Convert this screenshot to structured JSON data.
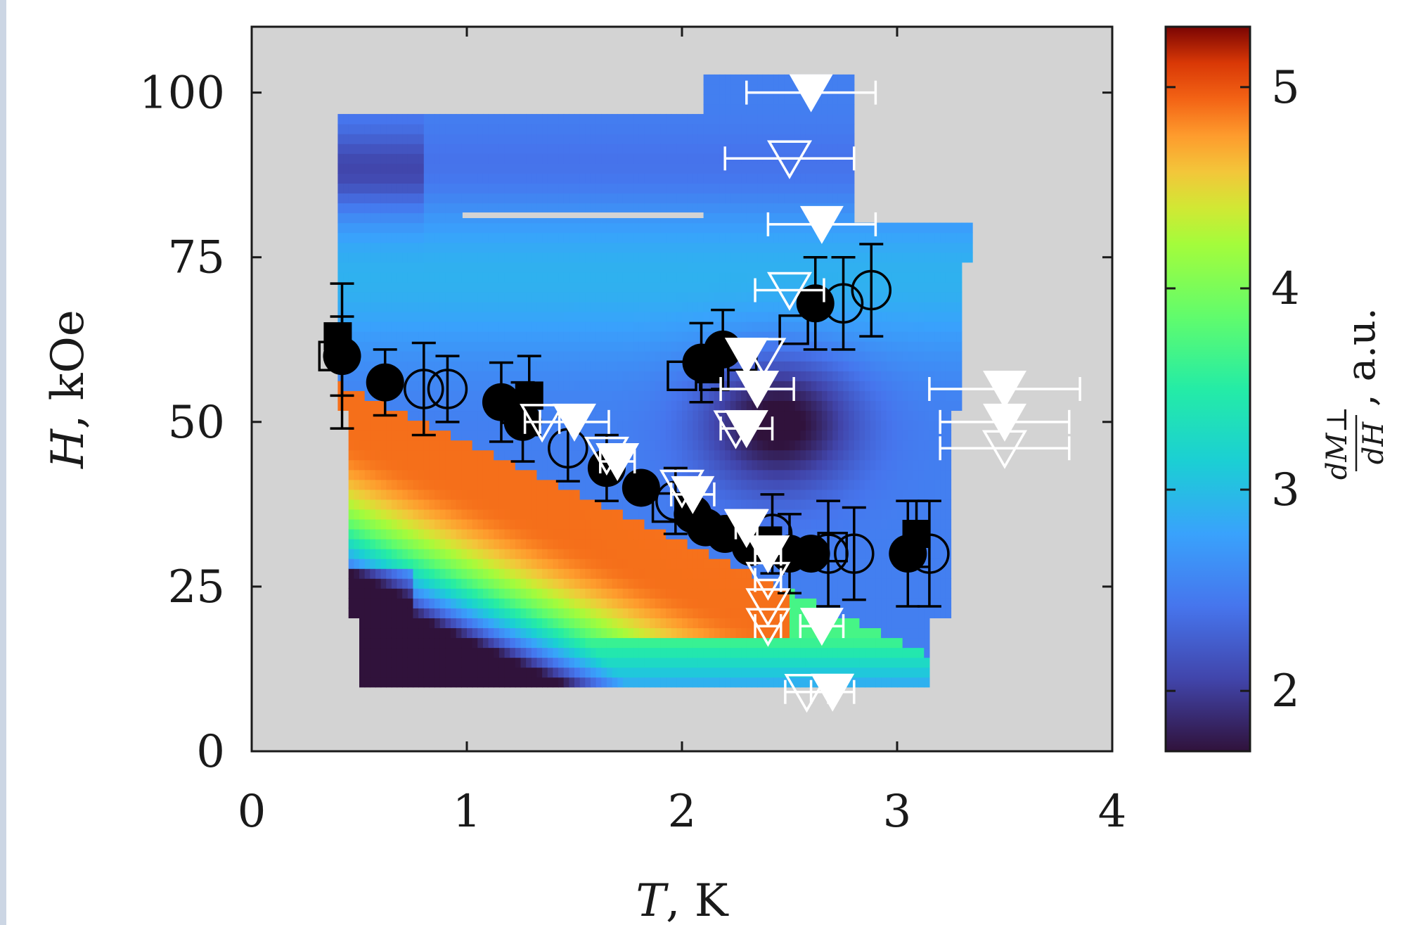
{
  "chart_data": {
    "type": "heatmap",
    "xlabel": {
      "symbol": "T",
      "unit": ", K"
    },
    "ylabel": {
      "symbol": "H",
      "unit": ", kOe"
    },
    "xlim": [
      0,
      4
    ],
    "ylim": [
      0,
      110
    ],
    "xticks": [
      "0",
      "1",
      "2",
      "3",
      "4"
    ],
    "yticks": [
      "0",
      "25",
      "50",
      "75",
      "100"
    ],
    "colorbar": {
      "label_numerator": "dM⊥",
      "label_denominator": "dH",
      "label_unit": ", a.u.",
      "range": [
        1.7,
        5.3
      ],
      "ticks": [
        "2",
        "3",
        "4",
        "5"
      ]
    },
    "colors": {
      "background": "#d3d3d3",
      "axes": "#1a1a1a",
      "markers_black": "#000000",
      "markers_white": "#ffffff"
    },
    "series": [
      {
        "marker": "filled-circle",
        "color": "black",
        "points": [
          [
            0.42,
            60
          ],
          [
            0.62,
            56
          ],
          [
            1.16,
            53
          ],
          [
            1.26,
            50
          ],
          [
            1.65,
            43
          ],
          [
            1.81,
            40
          ],
          [
            2.05,
            36
          ],
          [
            2.11,
            34
          ],
          [
            2.2,
            33
          ],
          [
            2.32,
            31
          ],
          [
            2.5,
            30
          ],
          [
            2.6,
            30
          ],
          [
            2.09,
            59
          ],
          [
            2.19,
            61
          ],
          [
            2.62,
            68
          ],
          [
            3.05,
            30
          ]
        ]
      },
      {
        "marker": "open-circle",
        "color": "black",
        "points": [
          [
            0.8,
            55
          ],
          [
            0.91,
            55
          ],
          [
            1.47,
            46
          ],
          [
            1.97,
            38
          ],
          [
            2.42,
            33
          ],
          [
            2.68,
            30
          ],
          [
            2.8,
            30
          ],
          [
            2.75,
            68
          ],
          [
            2.88,
            70
          ],
          [
            3.15,
            30
          ]
        ]
      },
      {
        "marker": "filled-square",
        "color": "black",
        "points": [
          [
            0.4,
            63
          ],
          [
            1.29,
            54
          ],
          [
            2.03,
            37
          ],
          [
            2.28,
            34
          ],
          [
            2.4,
            32
          ],
          [
            2.13,
            58
          ],
          [
            3.09,
            33
          ]
        ]
      },
      {
        "marker": "open-square",
        "color": "black",
        "points": [
          [
            0.38,
            60
          ],
          [
            1.23,
            52
          ],
          [
            1.93,
            37
          ],
          [
            2.0,
            57
          ],
          [
            2.15,
            57
          ],
          [
            2.28,
            60
          ],
          [
            2.52,
            64
          ],
          [
            2.7,
            31
          ]
        ]
      },
      {
        "marker": "filled-triangle-down",
        "color": "white",
        "points": [
          [
            2.6,
            100
          ],
          [
            2.65,
            80
          ],
          [
            1.5,
            50
          ],
          [
            1.7,
            44
          ],
          [
            2.05,
            39
          ],
          [
            2.3,
            34
          ],
          [
            2.4,
            30
          ],
          [
            2.35,
            55
          ],
          [
            2.3,
            49
          ],
          [
            3.5,
            55
          ],
          [
            3.5,
            50
          ],
          [
            2.65,
            19
          ],
          [
            2.7,
            9
          ],
          [
            2.3,
            60
          ]
        ]
      },
      {
        "marker": "open-triangle-down",
        "color": "white",
        "points": [
          [
            2.5,
            90
          ],
          [
            2.5,
            70
          ],
          [
            1.35,
            50
          ],
          [
            1.65,
            45
          ],
          [
            2.0,
            40
          ],
          [
            2.3,
            34
          ],
          [
            2.4,
            26
          ],
          [
            2.4,
            22
          ],
          [
            2.4,
            19
          ],
          [
            2.25,
            49
          ],
          [
            3.5,
            46
          ],
          [
            2.58,
            9
          ],
          [
            2.38,
            60
          ]
        ]
      }
    ],
    "black_errorbars": [
      {
        "x": 0.42,
        "y": 60,
        "dy": 11
      },
      {
        "x": 0.42,
        "y": 60,
        "dy": 6
      },
      {
        "x": 0.62,
        "y": 56,
        "dy": 5
      },
      {
        "x": 0.8,
        "y": 55,
        "dy": 7
      },
      {
        "x": 0.91,
        "y": 55,
        "dy": 5
      },
      {
        "x": 1.16,
        "y": 53,
        "dy": 6
      },
      {
        "x": 1.26,
        "y": 50,
        "dy": 6
      },
      {
        "x": 1.29,
        "y": 54,
        "dy": 6
      },
      {
        "x": 1.47,
        "y": 46,
        "dy": 5
      },
      {
        "x": 1.65,
        "y": 43,
        "dy": 5
      },
      {
        "x": 1.97,
        "y": 38,
        "dy": 5
      },
      {
        "x": 2.42,
        "y": 33,
        "dy": 6
      },
      {
        "x": 2.68,
        "y": 30,
        "dy": 8
      },
      {
        "x": 2.8,
        "y": 30,
        "dy": 7
      },
      {
        "x": 2.62,
        "y": 68,
        "dy": 7
      },
      {
        "x": 2.75,
        "y": 68,
        "dy": 7
      },
      {
        "x": 2.88,
        "y": 70,
        "dy": 7
      },
      {
        "x": 2.19,
        "y": 61,
        "dy": 6
      },
      {
        "x": 2.09,
        "y": 59,
        "dy": 6
      },
      {
        "x": 3.05,
        "y": 30,
        "dy": 8
      },
      {
        "x": 3.09,
        "y": 33,
        "dy": 5
      },
      {
        "x": 3.15,
        "y": 30,
        "dy": 8
      },
      {
        "x": 2.5,
        "y": 30,
        "dy": 6
      }
    ],
    "white_errorbars": [
      {
        "x": 2.6,
        "y": 100,
        "dx": 0.3
      },
      {
        "x": 2.5,
        "y": 90,
        "dx": 0.3
      },
      {
        "x": 2.65,
        "y": 80,
        "dx": 0.25
      },
      {
        "x": 2.5,
        "y": 70,
        "dx": 0.16
      },
      {
        "x": 1.35,
        "y": 50,
        "dx": 0.08
      },
      {
        "x": 1.5,
        "y": 50,
        "dx": 0.16
      },
      {
        "x": 1.7,
        "y": 44,
        "dx": 0.08
      },
      {
        "x": 2.05,
        "y": 39,
        "dx": 0.1
      },
      {
        "x": 2.3,
        "y": 34,
        "dx": 0.05
      },
      {
        "x": 2.4,
        "y": 30,
        "dx": 0.06
      },
      {
        "x": 2.35,
        "y": 55,
        "dx": 0.17
      },
      {
        "x": 2.3,
        "y": 49,
        "dx": 0.12
      },
      {
        "x": 3.5,
        "y": 55,
        "dx": 0.35
      },
      {
        "x": 3.5,
        "y": 50,
        "dx": 0.3
      },
      {
        "x": 3.5,
        "y": 46,
        "dx": 0.3
      },
      {
        "x": 2.4,
        "y": 26,
        "dx": 0.06
      },
      {
        "x": 2.4,
        "y": 19,
        "dx": 0.06
      },
      {
        "x": 2.65,
        "y": 19,
        "dx": 0.1
      },
      {
        "x": 2.7,
        "y": 9,
        "dx": 0.1
      },
      {
        "x": 2.58,
        "y": 9,
        "dx": 0.1
      }
    ]
  }
}
